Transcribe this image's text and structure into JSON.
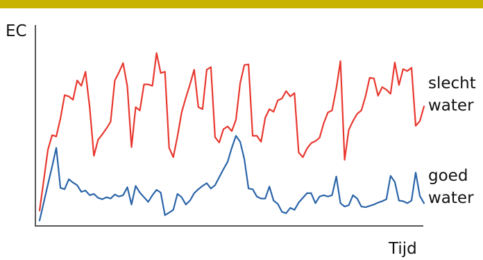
{
  "colors": {
    "top_bar": "#c8b400",
    "series_bad": "#e8372e",
    "series_good": "#2a64a8",
    "axis": "#555555"
  },
  "chart_data": {
    "type": "line",
    "ylabel": "EC",
    "xlabel": "Tijd",
    "grid": false,
    "legend": "right (labels next to lines)",
    "xlim": [
      0,
      91
    ],
    "ylim": [
      0,
      300
    ],
    "series": [
      {
        "name": "slecht water",
        "label_lines": [
          "slecht",
          "water"
        ],
        "values": [
          22,
          67,
          113,
          135,
          133,
          160,
          195,
          193,
          188,
          217,
          209,
          230,
          176,
          104,
          128,
          136,
          145,
          155,
          217,
          229,
          243,
          208,
          117,
          177,
          172,
          211,
          211,
          209,
          258,
          228,
          230,
          116,
          102,
          133,
          169,
          191,
          211,
          233,
          177,
          174,
          233,
          237,
          132,
          124,
          144,
          148,
          141,
          158,
          213,
          240,
          241,
          134,
          134,
          125,
          161,
          174,
          170,
          187,
          190,
          201,
          193,
          198,
          109,
          102,
          115,
          123,
          126,
          131,
          153,
          169,
          172,
          205,
          246,
          98,
          143,
          156,
          167,
          172,
          193,
          221,
          220,
          194,
          207,
          203,
          197,
          244,
          210,
          234,
          231,
          236,
          149,
          156,
          178
        ]
      },
      {
        "name": "goed water",
        "label_lines": [
          "goed",
          "water"
        ],
        "values": [
          7,
          34,
          61,
          88,
          116,
          56,
          54,
          69,
          64,
          60,
          50,
          52,
          45,
          47,
          41,
          39,
          42,
          40,
          46,
          43,
          45,
          57,
          31,
          59,
          49,
          42,
          35,
          45,
          53,
          49,
          15,
          19,
          23,
          47,
          42,
          31,
          37,
          48,
          54,
          59,
          63,
          55,
          60,
          72,
          84,
          95,
          116,
          134,
          125,
          99,
          55,
          54,
          43,
          40,
          40,
          58,
          37,
          32,
          20,
          18,
          26,
          23,
          34,
          41,
          48,
          48,
          33,
          43,
          45,
          43,
          45,
          73,
          33,
          28,
          30,
          45,
          40,
          28,
          27,
          29,
          31,
          34,
          36,
          39,
          74,
          65,
          37,
          36,
          33,
          37,
          79,
          44,
          33
        ]
      }
    ]
  }
}
